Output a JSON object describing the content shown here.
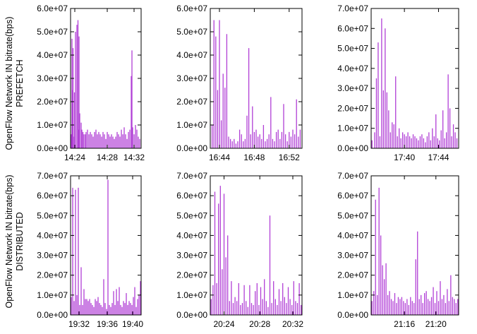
{
  "series_color": "#b13fd6",
  "row_labels": [
    {
      "line1": "OpenFlow Network IN bitrate(bps)",
      "line2": "PREFETCH"
    },
    {
      "line1": "OpenFlow Network IN bitrate(bps)",
      "line2": "DISTRIBUTED"
    }
  ],
  "chart_data": [
    {
      "type": "bar",
      "row": 0,
      "col": 0,
      "ylim": [
        0,
        60000000
      ],
      "yticks": [
        "0.0e+00",
        "1.0e+07",
        "2.0e+07",
        "3.0e+07",
        "4.0e+07",
        "5.0e+07",
        "6.0e+07"
      ],
      "xticks": [
        "14:24",
        "14:28",
        "14:32"
      ],
      "x": [
        0.01,
        0.02,
        0.03,
        0.035,
        0.04,
        0.055,
        0.07,
        0.09,
        0.105,
        0.115,
        0.12,
        0.13,
        0.15,
        0.16,
        0.175,
        0.19,
        0.21,
        0.22,
        0.24,
        0.26,
        0.28,
        0.3,
        0.32,
        0.34,
        0.36,
        0.38,
        0.4,
        0.42,
        0.44,
        0.46,
        0.48,
        0.5,
        0.52,
        0.54,
        0.56,
        0.58,
        0.6,
        0.62,
        0.64,
        0.66,
        0.68,
        0.7,
        0.72,
        0.74,
        0.76,
        0.78,
        0.8,
        0.82,
        0.84,
        0.86,
        0.87,
        0.88,
        0.9,
        0.92,
        0.94,
        0.96,
        0.98
      ],
      "values": [
        6000000,
        47000000,
        25000000,
        43000000,
        5000000,
        24000000,
        50000000,
        53000000,
        55000000,
        8000000,
        48000000,
        15000000,
        11000000,
        8000000,
        7000000,
        6000000,
        6000000,
        7000000,
        8000000,
        6000000,
        7000000,
        6000000,
        5000000,
        7000000,
        8000000,
        6000000,
        7000000,
        6000000,
        5000000,
        7000000,
        6000000,
        4000000,
        7000000,
        6000000,
        5000000,
        6000000,
        5000000,
        4000000,
        5000000,
        7000000,
        6000000,
        5000000,
        8000000,
        6000000,
        9000000,
        6000000,
        4000000,
        7000000,
        8000000,
        31000000,
        42000000,
        9000000,
        6000000,
        10000000,
        8000000,
        5000000,
        4000000
      ]
    },
    {
      "type": "bar",
      "row": 0,
      "col": 1,
      "ylim": [
        0,
        60000000
      ],
      "yticks": [
        "0.0e+00",
        "1.0e+07",
        "2.0e+07",
        "3.0e+07",
        "4.0e+07",
        "5.0e+07",
        "6.0e+07"
      ],
      "xticks": [
        "16:44",
        "16:48",
        "16:52"
      ],
      "x": [
        0.02,
        0.04,
        0.06,
        0.08,
        0.1,
        0.12,
        0.14,
        0.16,
        0.18,
        0.2,
        0.22,
        0.24,
        0.26,
        0.28,
        0.3,
        0.32,
        0.34,
        0.36,
        0.38,
        0.4,
        0.42,
        0.44,
        0.46,
        0.48,
        0.5,
        0.52,
        0.54,
        0.56,
        0.58,
        0.6,
        0.62,
        0.64,
        0.66,
        0.68,
        0.7,
        0.72,
        0.74,
        0.76,
        0.78,
        0.8,
        0.82,
        0.84,
        0.86,
        0.88,
        0.9,
        0.92,
        0.94,
        0.96,
        0.98
      ],
      "values": [
        10000000,
        55000000,
        48000000,
        25000000,
        55000000,
        12000000,
        32000000,
        26000000,
        49000000,
        5000000,
        4000000,
        3000000,
        4000000,
        2000000,
        3000000,
        8000000,
        6000000,
        3000000,
        4000000,
        14000000,
        43000000,
        6000000,
        18000000,
        7000000,
        8000000,
        5000000,
        6000000,
        4000000,
        10000000,
        3000000,
        4000000,
        6000000,
        22000000,
        4000000,
        3000000,
        7000000,
        8000000,
        4000000,
        7000000,
        19000000,
        6000000,
        3000000,
        7000000,
        5000000,
        8000000,
        6000000,
        21000000,
        5000000,
        8000000
      ]
    },
    {
      "type": "bar",
      "row": 0,
      "col": 2,
      "ylim": [
        0,
        70000000
      ],
      "yticks": [
        "0.0e+00",
        "1.0e+07",
        "2.0e+07",
        "3.0e+07",
        "4.0e+07",
        "5.0e+07",
        "6.0e+07",
        "7.0e+07"
      ],
      "xticks": [
        "17:40",
        "17:44"
      ],
      "x": [
        0.01,
        0.04,
        0.06,
        0.08,
        0.1,
        0.12,
        0.14,
        0.16,
        0.18,
        0.2,
        0.22,
        0.24,
        0.26,
        0.28,
        0.3,
        0.32,
        0.34,
        0.36,
        0.38,
        0.4,
        0.42,
        0.44,
        0.46,
        0.48,
        0.5,
        0.52,
        0.54,
        0.56,
        0.58,
        0.6,
        0.62,
        0.64,
        0.66,
        0.68,
        0.7,
        0.72,
        0.74,
        0.76,
        0.78,
        0.8,
        0.82,
        0.84,
        0.86,
        0.88,
        0.9,
        0.92,
        0.94,
        0.96,
        0.98
      ],
      "values": [
        4000000,
        8000000,
        35000000,
        53000000,
        6000000,
        65000000,
        29000000,
        60000000,
        28000000,
        19000000,
        8000000,
        13000000,
        12000000,
        36000000,
        6000000,
        10000000,
        5000000,
        8000000,
        7000000,
        6000000,
        8000000,
        6000000,
        5000000,
        7000000,
        6000000,
        5000000,
        4000000,
        6000000,
        7000000,
        5000000,
        3000000,
        6000000,
        8000000,
        4000000,
        10000000,
        6000000,
        17000000,
        5000000,
        4000000,
        9000000,
        19000000,
        5000000,
        8000000,
        37000000,
        20000000,
        6000000,
        12000000,
        8000000,
        5000000
      ]
    },
    {
      "type": "bar",
      "row": 1,
      "col": 0,
      "ylim": [
        0,
        70000000
      ],
      "yticks": [
        "0.0e+00",
        "1.0e+07",
        "2.0e+07",
        "3.0e+07",
        "4.0e+07",
        "5.0e+07",
        "6.0e+07",
        "7.0e+07"
      ],
      "xticks": [
        "19:32",
        "19:36",
        "19:40"
      ],
      "x": [
        0.01,
        0.03,
        0.05,
        0.07,
        0.09,
        0.11,
        0.13,
        0.15,
        0.17,
        0.19,
        0.21,
        0.23,
        0.25,
        0.27,
        0.29,
        0.31,
        0.33,
        0.35,
        0.37,
        0.39,
        0.41,
        0.43,
        0.45,
        0.47,
        0.49,
        0.51,
        0.53,
        0.55,
        0.57,
        0.59,
        0.61,
        0.63,
        0.65,
        0.67,
        0.69,
        0.71,
        0.73,
        0.75,
        0.77,
        0.79,
        0.81,
        0.83,
        0.85,
        0.87,
        0.89,
        0.91,
        0.93,
        0.95,
        0.97,
        0.99
      ],
      "values": [
        9000000,
        64000000,
        7000000,
        63000000,
        10000000,
        64000000,
        5000000,
        24000000,
        5000000,
        13000000,
        8000000,
        8000000,
        7000000,
        8000000,
        6000000,
        5000000,
        4000000,
        8000000,
        7000000,
        9000000,
        6000000,
        5000000,
        4000000,
        18000000,
        6000000,
        3000000,
        68000000,
        5000000,
        4000000,
        6000000,
        12000000,
        5000000,
        13000000,
        7000000,
        14000000,
        5000000,
        4000000,
        7000000,
        6000000,
        11000000,
        5000000,
        7000000,
        6000000,
        5000000,
        9000000,
        14000000,
        4000000,
        8000000,
        10000000,
        17000000
      ]
    },
    {
      "type": "bar",
      "row": 1,
      "col": 1,
      "ylim": [
        0,
        70000000
      ],
      "yticks": [
        "0.0e+00",
        "1.0e+07",
        "2.0e+07",
        "3.0e+07",
        "4.0e+07",
        "5.0e+07",
        "6.0e+07",
        "7.0e+07"
      ],
      "xticks": [
        "20:24",
        "20:28",
        "20:32"
      ],
      "x": [
        0.01,
        0.03,
        0.05,
        0.07,
        0.09,
        0.11,
        0.13,
        0.15,
        0.17,
        0.19,
        0.21,
        0.23,
        0.25,
        0.27,
        0.29,
        0.31,
        0.33,
        0.35,
        0.37,
        0.39,
        0.41,
        0.43,
        0.45,
        0.47,
        0.49,
        0.51,
        0.53,
        0.55,
        0.57,
        0.59,
        0.61,
        0.63,
        0.65,
        0.67,
        0.69,
        0.71,
        0.73,
        0.75,
        0.77,
        0.79,
        0.81,
        0.83,
        0.85,
        0.87,
        0.89,
        0.91,
        0.93,
        0.95,
        0.97,
        0.99
      ],
      "values": [
        8000000,
        15000000,
        62000000,
        16000000,
        56000000,
        65000000,
        23000000,
        61000000,
        29000000,
        40000000,
        7000000,
        17000000,
        6000000,
        9000000,
        7000000,
        16000000,
        5000000,
        6000000,
        15000000,
        7000000,
        4000000,
        15000000,
        6000000,
        5000000,
        12000000,
        16000000,
        5000000,
        14000000,
        8000000,
        18000000,
        7000000,
        4000000,
        50000000,
        6000000,
        17000000,
        8000000,
        5000000,
        13000000,
        7000000,
        16000000,
        9000000,
        6000000,
        14000000,
        8000000,
        5000000,
        17000000,
        7000000,
        6000000,
        16000000,
        5000000
      ]
    },
    {
      "type": "bar",
      "row": 1,
      "col": 2,
      "ylim": [
        0,
        70000000
      ],
      "yticks": [
        "0.0e+00",
        "1.0e+07",
        "2.0e+07",
        "3.0e+07",
        "4.0e+07",
        "5.0e+07",
        "6.0e+07",
        "7.0e+07"
      ],
      "xticks": [
        "21:16",
        "21:20"
      ],
      "x": [
        0.01,
        0.03,
        0.05,
        0.07,
        0.09,
        0.11,
        0.13,
        0.15,
        0.17,
        0.19,
        0.21,
        0.23,
        0.25,
        0.27,
        0.29,
        0.31,
        0.33,
        0.35,
        0.37,
        0.39,
        0.41,
        0.43,
        0.45,
        0.47,
        0.49,
        0.51,
        0.53,
        0.55,
        0.57,
        0.59,
        0.61,
        0.63,
        0.65,
        0.67,
        0.69,
        0.71,
        0.73,
        0.75,
        0.77,
        0.79,
        0.81,
        0.83,
        0.85,
        0.87,
        0.89,
        0.91,
        0.93,
        0.95,
        0.97,
        0.99
      ],
      "values": [
        7000000,
        12000000,
        58000000,
        10000000,
        64000000,
        40000000,
        25000000,
        18000000,
        26000000,
        10000000,
        12000000,
        8000000,
        7000000,
        11000000,
        6000000,
        9000000,
        8000000,
        9000000,
        7000000,
        6000000,
        8000000,
        5000000,
        9000000,
        7000000,
        6000000,
        28000000,
        42000000,
        8000000,
        10000000,
        6000000,
        11000000,
        12000000,
        8000000,
        7000000,
        9000000,
        14000000,
        6000000,
        12000000,
        7000000,
        17000000,
        8000000,
        10000000,
        6000000,
        13000000,
        7000000,
        20000000,
        9000000,
        8000000,
        6000000,
        8000000
      ]
    }
  ]
}
